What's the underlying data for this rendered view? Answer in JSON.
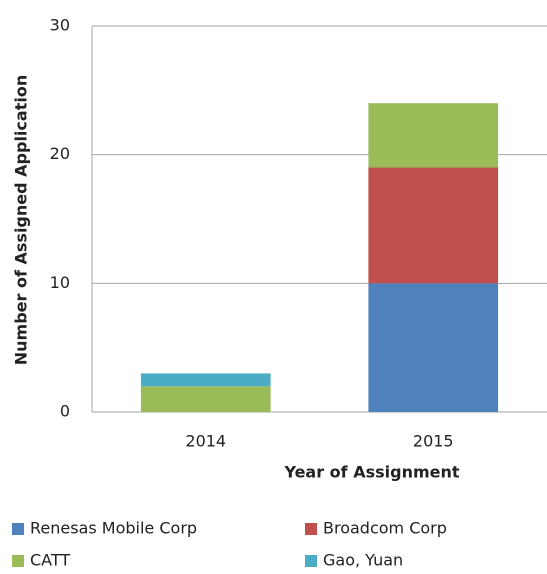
{
  "chart_data": {
    "type": "stacked_bar",
    "categories": [
      "2014",
      "2015"
    ],
    "series": [
      {
        "name": "Renesas Mobile Corp",
        "color": "#4f81bd",
        "values": [
          0,
          10
        ]
      },
      {
        "name": "Broadcom Corp",
        "color": "#c0504d",
        "values": [
          0,
          9
        ]
      },
      {
        "name": "CATT",
        "color": "#9bbb59",
        "values": [
          2,
          5
        ]
      },
      {
        "name": "Gao, Yuan",
        "color": "#4bacc6",
        "values": [
          1,
          0
        ]
      }
    ],
    "ylim": [
      0,
      30
    ],
    "yticks": [
      0,
      10,
      20,
      30
    ],
    "grid": true,
    "x_label": "Year of Assignment",
    "y_label": "Number of Assigned Application",
    "legend": "bottom"
  }
}
